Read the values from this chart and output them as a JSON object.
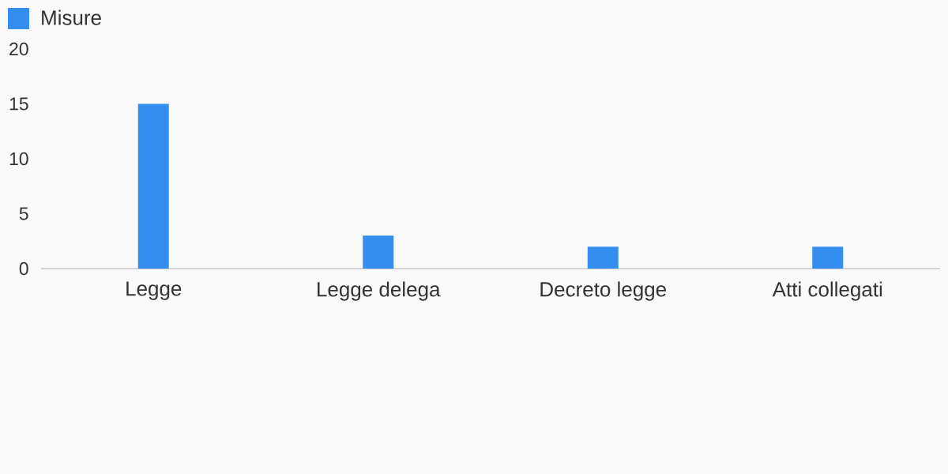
{
  "chart_data": {
    "type": "bar",
    "categories": [
      "Legge",
      "Legge delega",
      "Decreto legge",
      "Atti collegati"
    ],
    "series": [
      {
        "name": "Misure",
        "color": "#338ef0",
        "values": [
          15,
          3,
          2,
          2
        ]
      }
    ],
    "ylim": [
      0,
      20
    ],
    "yticks": [
      0,
      5,
      10,
      15,
      20
    ],
    "legend": "top left",
    "grid": false
  }
}
